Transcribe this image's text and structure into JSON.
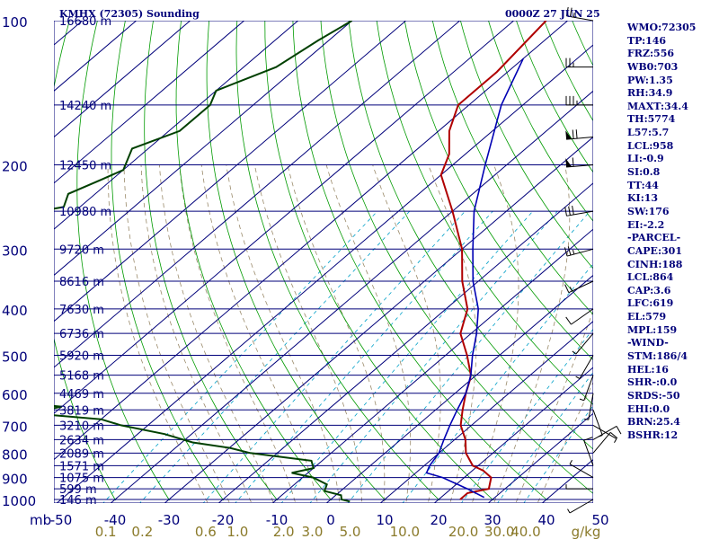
{
  "header": {
    "station": "KMHX (72305) Sounding",
    "time": "0000Z 27 JUN 25"
  },
  "indices": [
    "WMO:72305",
    "TP:146",
    "FRZ:556",
    "WB0:703",
    "PW:1.35",
    "RH:34.9",
    "MAXT:34.4",
    "TH:5774",
    "L57:5.7",
    "LCL:958",
    "LI:-0.9",
    "SI:0.8",
    "TT:44",
    "KI:13",
    "SW:176",
    "EI:-2.2",
    "-PARCEL-",
    "CAPE:301",
    "CINH:188",
    "LCL:864",
    "CAP:3.6",
    "LFC:619",
    "EL:579",
    "MPL:159",
    "-WIND-",
    "STM:186/4",
    "HEL:16",
    "SHR-:0.0",
    "SRDS:-50",
    "EHI:0.0",
    "BRN:25.4",
    "BSHR:12"
  ],
  "colors": {
    "isobar": "#00007a",
    "isotherm": "#00007a",
    "dry_adiabat": "#009a00",
    "moist_adiabat": "#9a8a6a",
    "mixing_ratio": "#00a0c8",
    "temperature": "#b00000",
    "dewpoint": "#004000",
    "parcel": "#0000b4",
    "temp_axis_label": "#00007a",
    "mixing_axis_label": "#8a7a2a"
  },
  "chart_data": {
    "type": "skew-t",
    "pressure_ticks": [
      100,
      200,
      300,
      400,
      500,
      600,
      700,
      800,
      900,
      1000
    ],
    "pressure_unit": "mb",
    "temperature_ticks": [
      -50,
      -40,
      -30,
      -20,
      -10,
      0,
      10,
      20,
      30,
      40,
      50
    ],
    "temperature_range": [
      -50,
      50
    ],
    "mixing_ratio_ticks": [
      "0.1",
      "0.2",
      "0.6",
      "1.0",
      "2.0",
      "3.0",
      "5.0",
      "10.0",
      "20.0",
      "30.0",
      "40.0"
    ],
    "mixing_ratio_unit": "g/kg",
    "heights": [
      {
        "p": 100,
        "label": "16680 m"
      },
      {
        "p": 150,
        "label": "14240 m"
      },
      {
        "p": 200,
        "label": "12450 m"
      },
      {
        "p": 250,
        "label": "10980 m"
      },
      {
        "p": 300,
        "label": "9720 m"
      },
      {
        "p": 350,
        "label": "8616 m"
      },
      {
        "p": 400,
        "label": "7630 m"
      },
      {
        "p": 450,
        "label": "6736 m"
      },
      {
        "p": 500,
        "label": "5920 m"
      },
      {
        "p": 550,
        "label": "5168 m"
      },
      {
        "p": 600,
        "label": "4469 m"
      },
      {
        "p": 650,
        "label": "3819 m"
      },
      {
        "p": 700,
        "label": "3210 m"
      },
      {
        "p": 750,
        "label": "2634 m"
      },
      {
        "p": 800,
        "label": "2089 m"
      },
      {
        "p": 850,
        "label": "1571 m"
      },
      {
        "p": 900,
        "label": "1075 m"
      },
      {
        "p": 950,
        "label": "599 m"
      },
      {
        "p": 1000,
        "label": "146 m"
      }
    ],
    "series": [
      {
        "key": "temperature",
        "points": [
          [
            100,
            -64
          ],
          [
            128,
            -62
          ],
          [
            140,
            -62
          ],
          [
            150,
            -62
          ],
          [
            170,
            -58
          ],
          [
            190,
            -53
          ],
          [
            210,
            -50
          ],
          [
            250,
            -40
          ],
          [
            300,
            -30
          ],
          [
            350,
            -23
          ],
          [
            400,
            -16
          ],
          [
            450,
            -12
          ],
          [
            500,
            -6
          ],
          [
            550,
            -1
          ],
          [
            565,
            0
          ],
          [
            600,
            2
          ],
          [
            650,
            5
          ],
          [
            700,
            8
          ],
          [
            750,
            12
          ],
          [
            800,
            15
          ],
          [
            850,
            19
          ],
          [
            870,
            22
          ],
          [
            900,
            25
          ],
          [
            950,
            27
          ],
          [
            970,
            24
          ],
          [
            1000,
            24
          ]
        ]
      },
      {
        "key": "dewpoint",
        "points": [
          [
            100,
            -100
          ],
          [
            110,
            -102
          ],
          [
            125,
            -104
          ],
          [
            140,
            -110
          ],
          [
            150,
            -108
          ],
          [
            170,
            -108
          ],
          [
            185,
            -113
          ],
          [
            205,
            -110
          ],
          [
            215,
            -112
          ],
          [
            230,
            -115
          ],
          [
            245,
            -113
          ],
          [
            255,
            -120
          ],
          [
            270,
            -126
          ],
          [
            285,
            -122
          ],
          [
            300,
            -120
          ],
          [
            320,
            -118
          ],
          [
            340,
            -115
          ],
          [
            360,
            -118
          ],
          [
            380,
            -122
          ],
          [
            400,
            -120
          ],
          [
            420,
            -105
          ],
          [
            440,
            -93
          ],
          [
            450,
            -97
          ],
          [
            470,
            -90
          ],
          [
            480,
            -97
          ],
          [
            500,
            -85
          ],
          [
            520,
            -95
          ],
          [
            550,
            -110
          ],
          [
            570,
            -103
          ],
          [
            580,
            -80
          ],
          [
            590,
            -95
          ],
          [
            600,
            -90
          ],
          [
            620,
            -85
          ],
          [
            640,
            -70
          ],
          [
            660,
            -75
          ],
          [
            680,
            -60
          ],
          [
            700,
            -55
          ],
          [
            730,
            -45
          ],
          [
            760,
            -38
          ],
          [
            780,
            -30
          ],
          [
            800,
            -25
          ],
          [
            830,
            -12
          ],
          [
            860,
            -10
          ],
          [
            880,
            -13
          ],
          [
            900,
            -8
          ],
          [
            930,
            -4
          ],
          [
            960,
            -3
          ],
          [
            980,
            1
          ],
          [
            1000,
            2
          ],
          [
            1010,
            4
          ]
        ]
      },
      {
        "key": "parcel",
        "points": [
          [
            120,
            -60
          ],
          [
            150,
            -54
          ],
          [
            200,
            -44
          ],
          [
            250,
            -36
          ],
          [
            300,
            -28
          ],
          [
            350,
            -21
          ],
          [
            400,
            -14
          ],
          [
            450,
            -9
          ],
          [
            500,
            -5
          ],
          [
            550,
            -1
          ],
          [
            600,
            2
          ],
          [
            650,
            4
          ],
          [
            700,
            6
          ],
          [
            750,
            8
          ],
          [
            800,
            10
          ],
          [
            850,
            11
          ],
          [
            880,
            12
          ],
          [
            900,
            16
          ],
          [
            950,
            23
          ],
          [
            990,
            28
          ]
        ]
      }
    ],
    "wind_barbs": [
      {
        "p": 100,
        "dir": 280,
        "spd": 25
      },
      {
        "p": 125,
        "dir": 270,
        "spd": 25
      },
      {
        "p": 150,
        "dir": 270,
        "spd": 35
      },
      {
        "p": 175,
        "dir": 265,
        "spd": 70
      },
      {
        "p": 200,
        "dir": 265,
        "spd": 60
      },
      {
        "p": 250,
        "dir": 260,
        "spd": 30
      },
      {
        "p": 300,
        "dir": 255,
        "spd": 25
      },
      {
        "p": 350,
        "dir": 245,
        "spd": 15
      },
      {
        "p": 400,
        "dir": 235,
        "spd": 10
      },
      {
        "p": 450,
        "dir": 220,
        "spd": 5
      },
      {
        "p": 500,
        "dir": 210,
        "spd": 5
      },
      {
        "p": 550,
        "dir": 200,
        "spd": 5
      },
      {
        "p": 600,
        "dir": 190,
        "spd": 5
      },
      {
        "p": 650,
        "dir": 160,
        "spd": 5
      },
      {
        "p": 700,
        "dir": 120,
        "spd": 5
      },
      {
        "p": 750,
        "dir": 60,
        "spd": 10
      },
      {
        "p": 800,
        "dir": 40,
        "spd": 10
      },
      {
        "p": 850,
        "dir": 340,
        "spd": 10
      },
      {
        "p": 900,
        "dir": 300,
        "spd": 5
      },
      {
        "p": 950,
        "dir": 270,
        "spd": 5
      },
      {
        "p": 1000,
        "dir": 240,
        "spd": 5
      }
    ]
  }
}
